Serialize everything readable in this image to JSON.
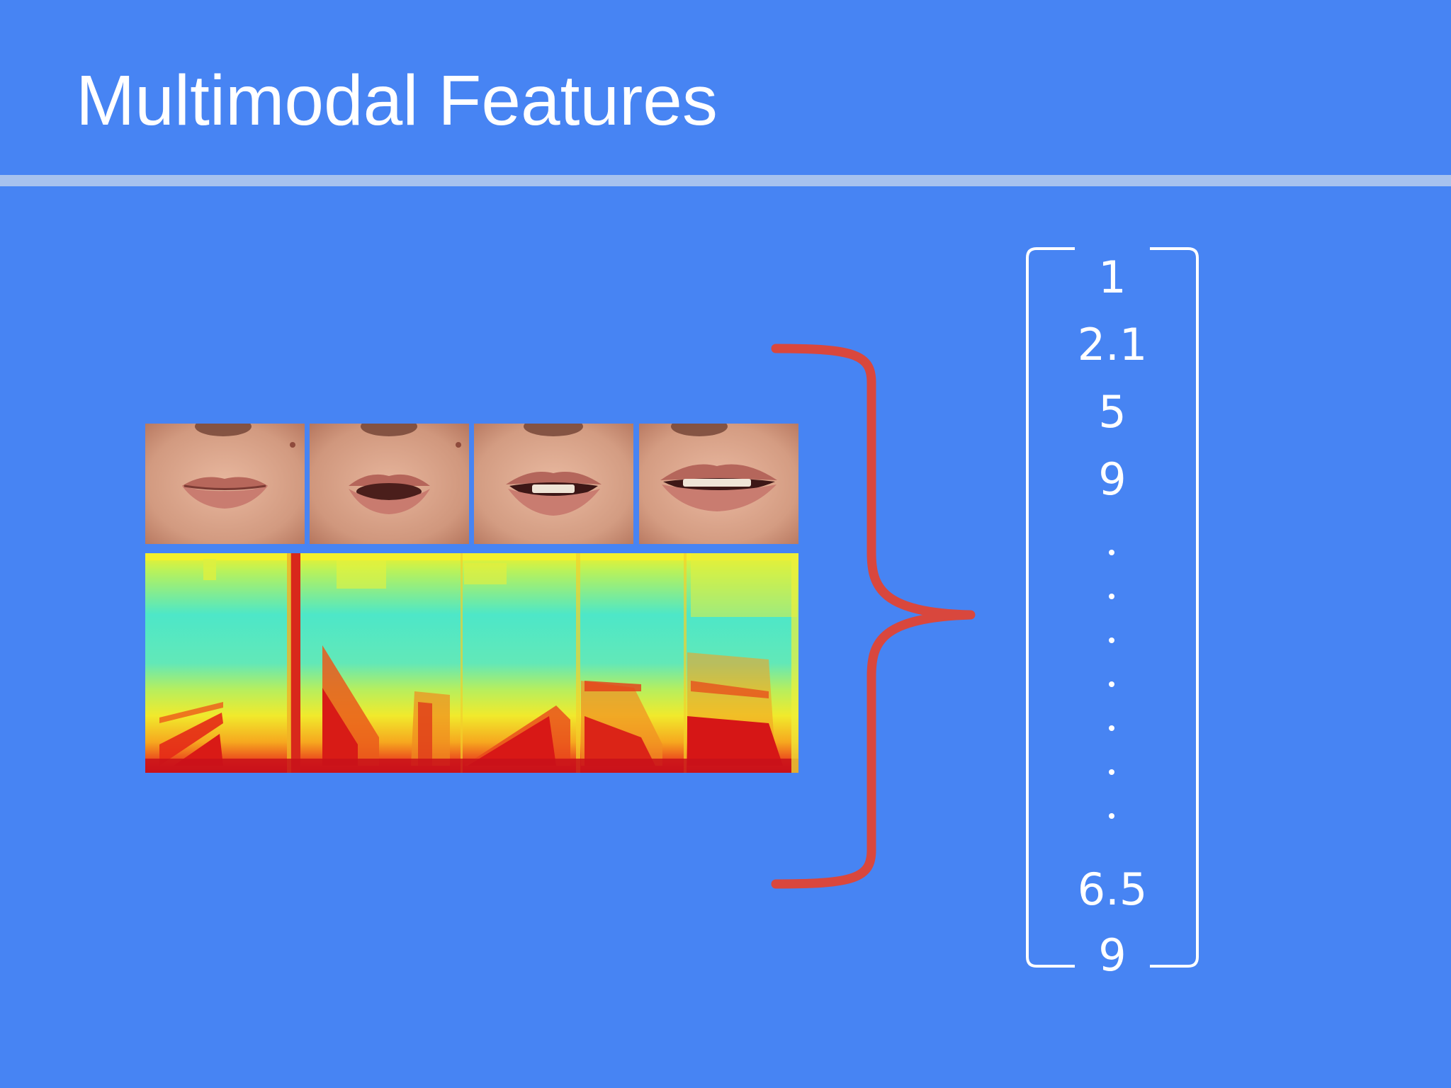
{
  "slide": {
    "title": "Multimodal Features"
  },
  "visual_features": {
    "frames": [
      {
        "mouth_shape": "closed"
      },
      {
        "mouth_shape": "open-round"
      },
      {
        "mouth_shape": "open-teeth"
      },
      {
        "mouth_shape": "smile-teeth"
      }
    ]
  },
  "feature_vector": {
    "top_values": [
      "1",
      "2.1",
      "5",
      "9"
    ],
    "ellipsis_count": 7,
    "bottom_values": [
      "6.5",
      "9"
    ]
  },
  "colors": {
    "background": "#4784f3",
    "title_rule": "#a7c2ee",
    "brace": "#d9473d",
    "text": "#ffffff"
  }
}
